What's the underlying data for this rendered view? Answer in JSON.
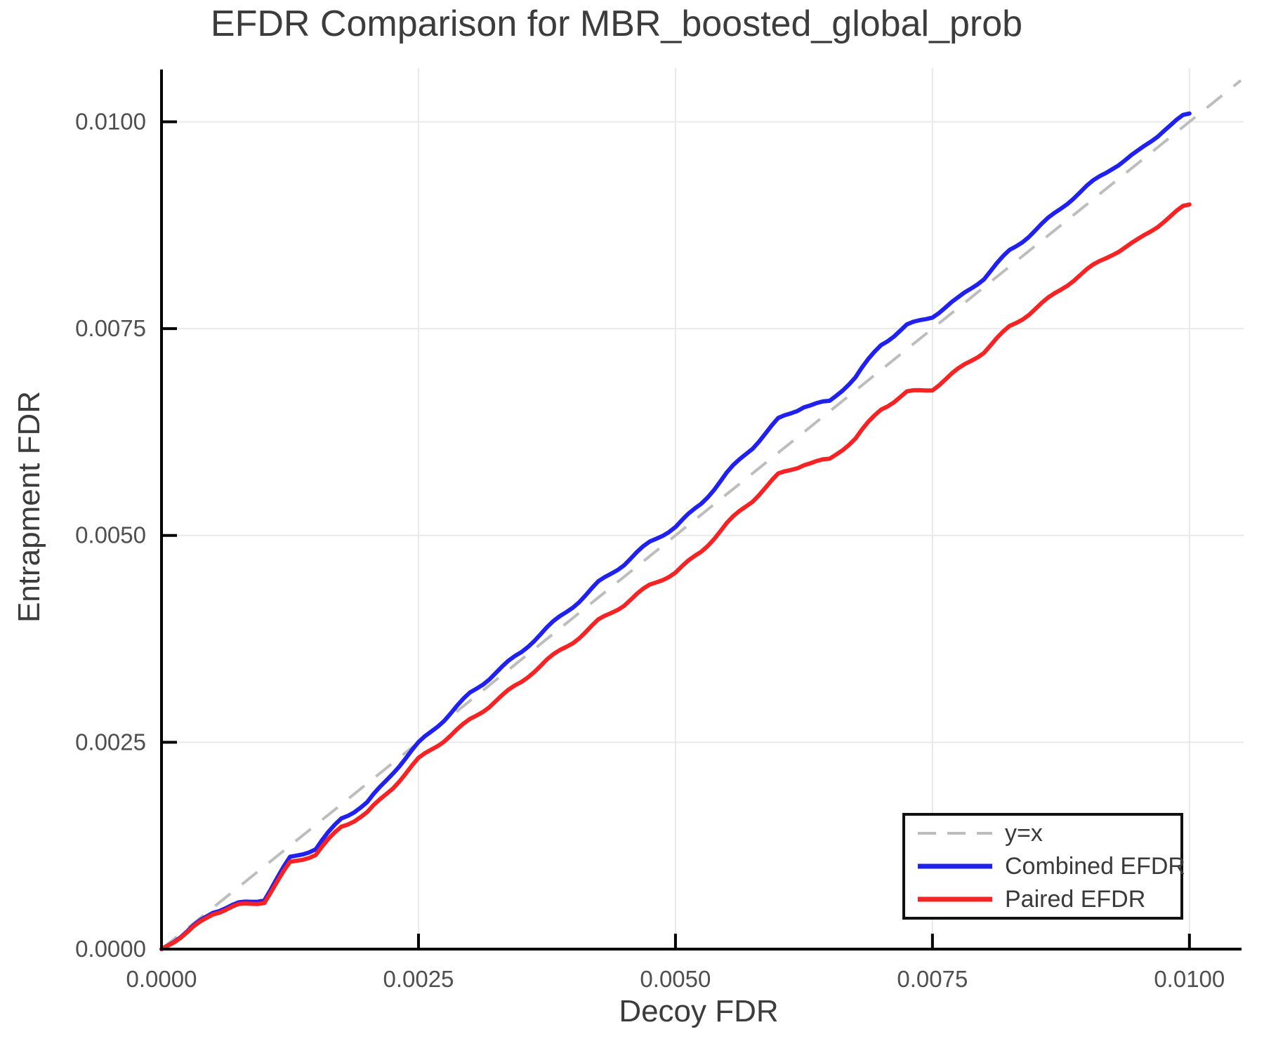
{
  "chart_data": {
    "type": "line",
    "title": "EFDR Comparison for MBR_boosted_global_prob",
    "xlabel": "Decoy FDR",
    "ylabel": "Entrapment FDR",
    "xlim": [
      0,
      0.0105
    ],
    "ylim": [
      0,
      0.010615
    ],
    "grid": true,
    "legend_position": "lower right",
    "xticks": {
      "values": [
        0,
        0.0025,
        0.005,
        0.0075,
        0.01
      ],
      "labels": [
        "0.0000",
        "0.0025",
        "0.0050",
        "0.0075",
        "0.0100"
      ]
    },
    "yticks": {
      "values": [
        0,
        0.0025,
        0.005,
        0.0075,
        0.01
      ],
      "labels": [
        "0.0000",
        "0.0025",
        "0.0050",
        "0.0075",
        "0.0100"
      ]
    },
    "series": [
      {
        "name": "y=x",
        "color": "#bdbdbd",
        "style": "dashed",
        "width": 4,
        "x": [
          0,
          0.0105
        ],
        "y": [
          0,
          0.0105
        ]
      },
      {
        "name": "Combined EFDR",
        "color": "#2121ef",
        "style": "solid",
        "width": 6,
        "x": [
          0.0,
          0.00025,
          0.0005,
          0.00075,
          0.001,
          0.00125,
          0.0015,
          0.00175,
          0.002,
          0.00225,
          0.0025,
          0.00275,
          0.003,
          0.00325,
          0.0035,
          0.00375,
          0.004,
          0.00425,
          0.0045,
          0.00475,
          0.005,
          0.00525,
          0.0055,
          0.00575,
          0.006,
          0.00625,
          0.0065,
          0.00675,
          0.007,
          0.00725,
          0.0075,
          0.00775,
          0.008,
          0.00825,
          0.0085,
          0.00875,
          0.009,
          0.00925,
          0.0095,
          0.00975,
          0.01
        ],
        "y": [
          0.0,
          0.0002,
          0.00044,
          0.00055,
          0.00062,
          0.0011,
          0.0012,
          0.00158,
          0.00178,
          0.00214,
          0.00247,
          0.00277,
          0.0031,
          0.00335,
          0.00358,
          0.00387,
          0.00415,
          0.00444,
          0.00465,
          0.0049,
          0.00511,
          0.0054,
          0.00575,
          0.00605,
          0.0064,
          0.00658,
          0.00662,
          0.0069,
          0.0073,
          0.00755,
          0.00766,
          0.00785,
          0.0081,
          0.00845,
          0.0087,
          0.00895,
          0.0092,
          0.00945,
          0.00965,
          0.0099,
          0.0101
        ]
      },
      {
        "name": "Paired EFDR",
        "color": "#f52323",
        "style": "solid",
        "width": 6,
        "x": [
          0.0,
          0.00025,
          0.0005,
          0.00075,
          0.001,
          0.00125,
          0.0015,
          0.00175,
          0.002,
          0.00225,
          0.0025,
          0.00275,
          0.003,
          0.00325,
          0.0035,
          0.00375,
          0.004,
          0.00425,
          0.0045,
          0.00475,
          0.005,
          0.00525,
          0.0055,
          0.00575,
          0.006,
          0.00625,
          0.0065,
          0.00675,
          0.007,
          0.00725,
          0.0075,
          0.00775,
          0.008,
          0.00825,
          0.0085,
          0.00875,
          0.009,
          0.00925,
          0.0095,
          0.00975,
          0.01
        ],
        "y": [
          0.0,
          0.00019,
          0.00042,
          0.00053,
          0.00059,
          0.00104,
          0.00113,
          0.00148,
          0.00166,
          0.00196,
          0.00228,
          0.00252,
          0.00278,
          0.00301,
          0.00322,
          0.00348,
          0.00372,
          0.00398,
          0.00416,
          0.00438,
          0.00456,
          0.00482,
          0.00514,
          0.00541,
          0.00573,
          0.00588,
          0.00592,
          0.00616,
          0.00652,
          0.00674,
          0.00678,
          0.00699,
          0.00721,
          0.00753,
          0.00775,
          0.00797,
          0.00819,
          0.00841,
          0.00858,
          0.0088,
          0.009
        ]
      }
    ]
  },
  "colors": {
    "axis": "#000000",
    "grid": "#e9e9e9",
    "tick_text": "#4f4f4f",
    "label_text": "#3c3c3c",
    "legend_border": "#111111",
    "background": "#ffffff"
  }
}
